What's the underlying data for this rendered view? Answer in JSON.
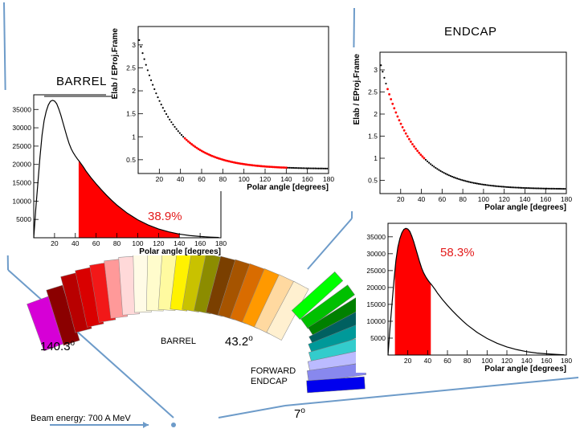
{
  "labels": {
    "barrel_title": "BARREL",
    "endcap_title": "ENDCAP",
    "barrel_pct": "38.9%",
    "endcap_pct": "58.3%",
    "barrel_ring": "BARREL",
    "forward_endcap": "FORWARD\nENDCAP",
    "angle_back": "140.3",
    "angle_mid": "43.2",
    "angle_fwd": "7",
    "degree_sign": "o",
    "beam_energy": "Beam energy: 700 A MeV"
  },
  "colors": {
    "line": "#6d9bc9",
    "highlight": "#ff0000",
    "barrel_segments": [
      "#d600d6",
      "#8b0000",
      "#b80000",
      "#d90000",
      "#f21818",
      "#ff9999",
      "#ffd9d9",
      "#fffbe6",
      "#fffccc",
      "#fffaa0",
      "#fff200",
      "#c9c200",
      "#8c8c00",
      "#7a3f00",
      "#a65400",
      "#d96c00",
      "#ff9900",
      "#ffd9a0",
      "#fff0d0"
    ],
    "endcap_segments": [
      "#00ff00",
      "#00c000",
      "#008000",
      "#006060",
      "#009999",
      "#33cccc",
      "#bbbbff",
      "#8888ee",
      "#0000ee"
    ]
  },
  "chart_data": [
    {
      "id": "barrel_hist",
      "type": "area",
      "xlabel": "Polar angle [degrees]",
      "ylabel": "",
      "xlim": [
        0,
        180
      ],
      "ylim": [
        0,
        39000
      ],
      "xticks": [
        20,
        40,
        60,
        80,
        100,
        120,
        140,
        160,
        180
      ],
      "yticks": [
        5000,
        10000,
        15000,
        20000,
        25000,
        30000,
        35000
      ],
      "highlight_range": [
        43.2,
        140.3
      ],
      "annotation": "38.9%",
      "series": [
        {
          "x": [
            2,
            4,
            6,
            8,
            10,
            12,
            14,
            16,
            18,
            20,
            22,
            24,
            26,
            28,
            30,
            32,
            34,
            36,
            38,
            40,
            42,
            44,
            46,
            48,
            50,
            55,
            60,
            65,
            70,
            75,
            80,
            90,
            100,
            110,
            120,
            130,
            140,
            150,
            160,
            170,
            178
          ],
          "values": [
            8000,
            15000,
            22000,
            28000,
            32000,
            34500,
            36200,
            37200,
            37500,
            37300,
            36600,
            35200,
            33500,
            31500,
            29500,
            27500,
            25700,
            24300,
            23200,
            22300,
            21500,
            20800,
            20000,
            19200,
            18300,
            16400,
            14700,
            13100,
            11600,
            10200,
            8900,
            6700,
            4900,
            3500,
            2400,
            1600,
            1000,
            600,
            350,
            180,
            80
          ]
        }
      ]
    },
    {
      "id": "barrel_ratio",
      "type": "scatter",
      "xlabel": "Polar angle [degrees]",
      "ylabel": "Elab / EProj.Frame",
      "xlim": [
        0,
        180
      ],
      "ylim": [
        0.2,
        3.4
      ],
      "xticks": [
        20,
        40,
        60,
        80,
        100,
        120,
        140,
        160,
        180
      ],
      "yticks": [
        0.5,
        1,
        1.5,
        2,
        2.5,
        3
      ],
      "highlight_range": [
        43.2,
        140.3
      ],
      "curve": {
        "a": 0.3,
        "b": 2.9,
        "scale": 30
      }
    },
    {
      "id": "endcap_ratio",
      "type": "scatter",
      "xlabel": "Polar angle [degrees]",
      "ylabel": "Elab / EProj.Frame",
      "xlim": [
        0,
        180
      ],
      "ylim": [
        0.2,
        3.4
      ],
      "xticks": [
        20,
        40,
        60,
        80,
        100,
        120,
        140,
        160,
        180
      ],
      "yticks": [
        0.5,
        1,
        1.5,
        2,
        2.5,
        3
      ],
      "highlight_range": [
        7,
        43.2
      ],
      "curve": {
        "a": 0.3,
        "b": 2.9,
        "scale": 30
      }
    },
    {
      "id": "endcap_hist",
      "type": "area",
      "xlabel": "Polar angle [degrees]",
      "ylabel": "",
      "xlim": [
        0,
        180
      ],
      "ylim": [
        0,
        39000
      ],
      "xticks": [
        20,
        40,
        60,
        80,
        100,
        120,
        140,
        160,
        180
      ],
      "yticks": [
        5000,
        10000,
        15000,
        20000,
        25000,
        30000,
        35000
      ],
      "highlight_range": [
        7,
        43.2
      ],
      "annotation": "58.3%",
      "series": [
        {
          "x": [
            2,
            4,
            6,
            8,
            10,
            12,
            14,
            16,
            18,
            20,
            22,
            24,
            26,
            28,
            30,
            32,
            34,
            36,
            38,
            40,
            42,
            44,
            46,
            48,
            50,
            55,
            60,
            65,
            70,
            75,
            80,
            90,
            100,
            110,
            120,
            130,
            140,
            150,
            160,
            170,
            178
          ],
          "values": [
            8000,
            15000,
            22000,
            28000,
            32000,
            34500,
            36200,
            37200,
            37500,
            37300,
            36600,
            35200,
            33500,
            31500,
            29500,
            27500,
            25700,
            24300,
            23200,
            22300,
            21500,
            20800,
            20000,
            19200,
            18300,
            16400,
            14700,
            13100,
            11600,
            10200,
            8900,
            6700,
            4900,
            3500,
            2400,
            1600,
            1000,
            600,
            350,
            180,
            80
          ]
        }
      ]
    }
  ]
}
